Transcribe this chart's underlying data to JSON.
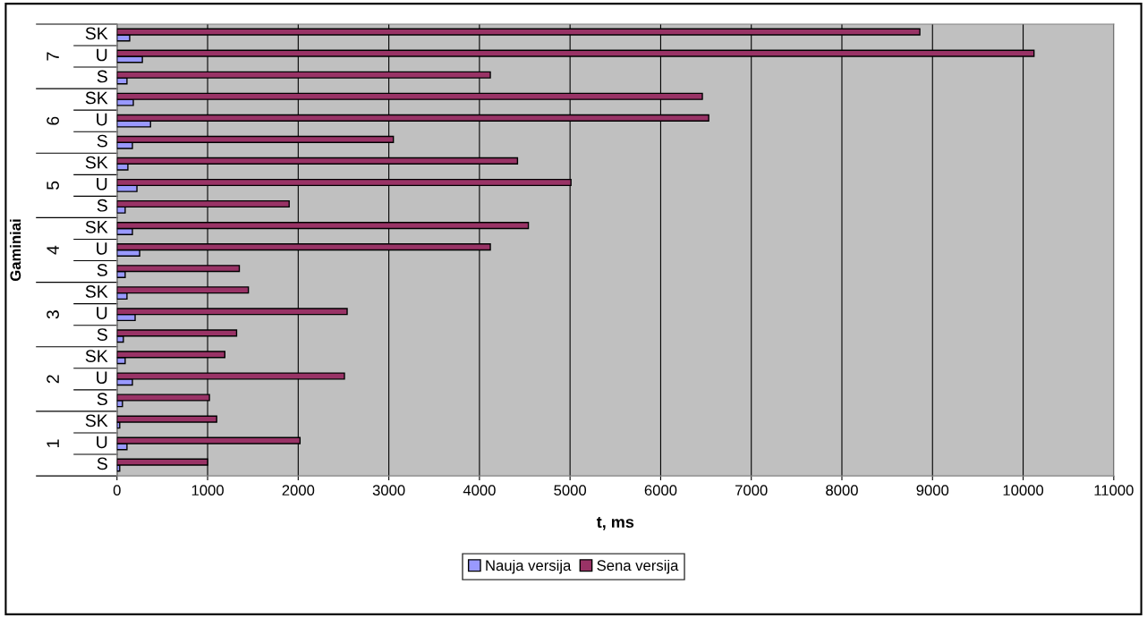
{
  "chart_data": {
    "type": "bar",
    "orientation": "horizontal",
    "xlabel": "t, ms",
    "ylabel": "Gaminiai",
    "categories": [
      "SK",
      "U",
      "S",
      "SK",
      "U",
      "S",
      "SK",
      "U",
      "S",
      "SK",
      "U",
      "S",
      "SK",
      "U",
      "S",
      "SK",
      "U",
      "S",
      "SK",
      "U",
      "S"
    ],
    "annotations": [
      "7",
      "6",
      "5",
      "4",
      "3",
      "2",
      "1"
    ],
    "series": [
      {
        "name": "Nauja versija",
        "color": "#9999ff",
        "values": [
          140,
          280,
          110,
          180,
          370,
          170,
          120,
          220,
          90,
          170,
          250,
          90,
          110,
          200,
          70,
          90,
          170,
          60,
          30,
          110,
          30
        ]
      },
      {
        "name": "Sena versija",
        "color": "#993366",
        "values": [
          8860,
          10120,
          4120,
          6460,
          6530,
          3050,
          4420,
          5010,
          1900,
          4540,
          4120,
          1350,
          1450,
          2540,
          1320,
          1190,
          2510,
          1020,
          1100,
          2020,
          1000
        ]
      }
    ],
    "xlim": [
      0,
      11000
    ],
    "xticks": [
      0,
      1000,
      2000,
      3000,
      4000,
      5000,
      6000,
      7000,
      8000,
      9000,
      10000,
      11000
    ],
    "grid": "x",
    "legend": "bottom"
  }
}
